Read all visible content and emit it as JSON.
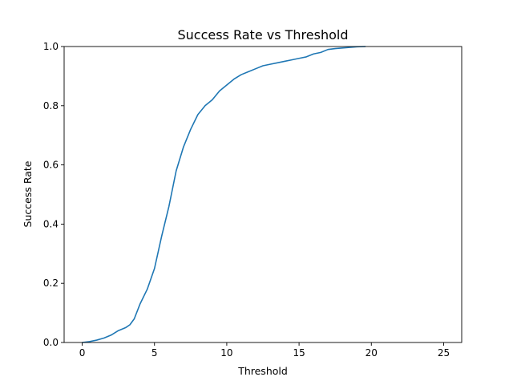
{
  "chart_data": {
    "type": "line",
    "title": "Success Rate vs Threshold",
    "xlabel": "Threshold",
    "ylabel": "Success Rate",
    "xlim": [
      -1.25,
      26.25
    ],
    "ylim": [
      0,
      1.0
    ],
    "xticks": [
      0,
      5,
      10,
      15,
      20,
      25
    ],
    "yticks": [
      0.0,
      0.2,
      0.4,
      0.6,
      0.8,
      1.0
    ],
    "grid": false,
    "legend": "none",
    "series": [
      {
        "color": "#1f77b4",
        "x": [
          0.0,
          0.5,
          1.0,
          1.5,
          2.0,
          2.5,
          3.0,
          3.3,
          3.6,
          4.0,
          4.5,
          5.0,
          5.5,
          6.0,
          6.5,
          7.0,
          7.5,
          8.0,
          8.5,
          9.0,
          9.5,
          10.0,
          10.5,
          11.0,
          11.5,
          12.0,
          12.5,
          13.0,
          13.5,
          14.0,
          14.5,
          15.0,
          15.5,
          16.0,
          16.5,
          17.0,
          17.5,
          18.0,
          18.5,
          19.0,
          19.6
        ],
        "y": [
          0.0,
          0.003,
          0.008,
          0.015,
          0.025,
          0.04,
          0.05,
          0.06,
          0.08,
          0.13,
          0.18,
          0.25,
          0.36,
          0.46,
          0.58,
          0.66,
          0.72,
          0.77,
          0.8,
          0.82,
          0.85,
          0.87,
          0.89,
          0.905,
          0.915,
          0.925,
          0.935,
          0.94,
          0.945,
          0.95,
          0.955,
          0.96,
          0.965,
          0.975,
          0.98,
          0.99,
          0.993,
          0.995,
          0.997,
          0.999,
          1.0
        ]
      }
    ]
  }
}
